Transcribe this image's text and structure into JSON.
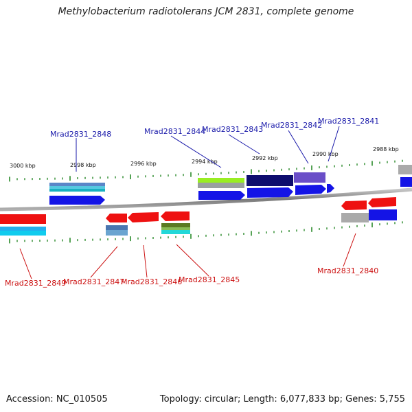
{
  "title": "Methylobacterium radiotolerans JCM 2831, complete genome",
  "accession": "Accession: NC_010505",
  "topology": "Topology: circular; Length: 6,077,833 bp; Genes: 5,755",
  "scale_labels": [
    "3000 kbp",
    "2998 kbp",
    "2996 kbp",
    "2994 kbp",
    "2992 kbp",
    "2990 kbp",
    "2988 kbp"
  ],
  "colors": {
    "forward_label": "#1a1aaa",
    "reverse_label": "#cc1111",
    "backbone": "#8a8a8a",
    "tick": "#2a8a2a"
  },
  "forward_genes": [
    {
      "id": "Mrad2831_2848"
    },
    {
      "id": "Mrad2831_2844"
    },
    {
      "id": "Mrad2831_2843"
    },
    {
      "id": "Mrad2831_2842"
    },
    {
      "id": "Mrad2831_2841"
    }
  ],
  "reverse_genes": [
    {
      "id": "Mrad2831_2849"
    },
    {
      "id": "Mrad2831_2847"
    },
    {
      "id": "Mrad2831_2846"
    },
    {
      "id": "Mrad2831_2845"
    },
    {
      "id": "Mrad2831_2840"
    }
  ]
}
